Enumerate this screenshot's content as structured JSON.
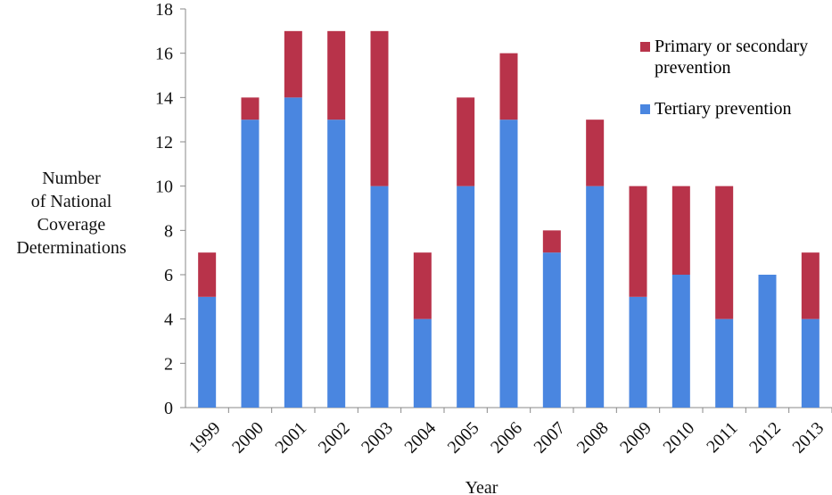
{
  "chart_data": {
    "type": "stacked-bar",
    "ylabel": [
      "Number",
      "of National",
      "Coverage",
      "Determinations"
    ],
    "xlabel": "Year",
    "categories": [
      "1999",
      "2000",
      "2001",
      "2002",
      "2003",
      "2004",
      "2005",
      "2006",
      "2007",
      "2008",
      "2009",
      "2010",
      "2011",
      "2012",
      "2013"
    ],
    "series": [
      {
        "name": "Tertiary prevention",
        "color": "#4a86e0",
        "values": [
          5,
          13,
          14,
          13,
          10,
          4,
          10,
          13,
          7,
          10,
          5,
          6,
          4,
          6,
          4
        ]
      },
      {
        "name": "Primary or secondary prevention",
        "color": "#b8334a",
        "values": [
          2,
          1,
          3,
          4,
          7,
          3,
          4,
          3,
          1,
          3,
          5,
          4,
          6,
          0,
          3
        ]
      }
    ],
    "ylim": [
      0,
      18
    ],
    "yticks": [
      0,
      2,
      4,
      6,
      8,
      10,
      12,
      14,
      16,
      18
    ],
    "grid": false,
    "legend": "upper right"
  }
}
